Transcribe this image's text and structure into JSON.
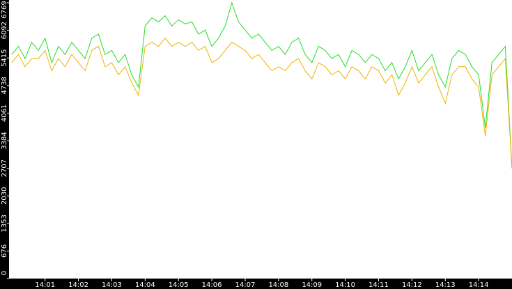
{
  "chart_data": {
    "type": "line",
    "x": [
      0,
      0.2,
      0.4,
      0.6,
      0.8,
      1,
      1.2,
      1.4,
      1.6,
      1.8,
      2,
      2.2,
      2.4,
      2.6,
      2.8,
      3,
      3.2,
      3.4,
      3.6,
      3.8,
      4,
      4.2,
      4.4,
      4.6,
      4.8,
      5,
      5.2,
      5.4,
      5.6,
      5.8,
      6,
      6.2,
      6.4,
      6.6,
      6.8,
      7,
      7.2,
      7.4,
      7.6,
      7.8,
      8,
      8.2,
      8.4,
      8.6,
      8.8,
      9,
      9.2,
      9.4,
      9.6,
      9.8,
      10,
      10.2,
      10.4,
      10.6,
      10.8,
      11,
      11.2,
      11.4,
      11.6,
      11.8,
      12,
      12.2,
      12.4,
      12.6,
      12.8,
      13,
      13.2,
      13.4,
      13.6,
      13.8,
      14,
      14.2,
      14.4,
      14.6,
      14.8,
      15
    ],
    "series": [
      {
        "color": "#22dd22",
        "values": [
          5500,
          5700,
          5400,
          5800,
          5600,
          5900,
          5300,
          5700,
          5500,
          5800,
          5600,
          5400,
          5900,
          6000,
          5500,
          5600,
          5300,
          5500,
          5000,
          4700,
          6200,
          6400,
          6300,
          6450,
          6200,
          6350,
          6250,
          6300,
          6000,
          6100,
          5700,
          5900,
          6200,
          6769,
          6300,
          6100,
          5900,
          6000,
          5800,
          5600,
          5700,
          5500,
          5800,
          5900,
          5500,
          5300,
          5700,
          5600,
          5400,
          5500,
          5200,
          5600,
          5500,
          5300,
          5500,
          5400,
          5100,
          5300,
          4900,
          5200,
          5600,
          5100,
          5300,
          5500,
          5000,
          4700,
          5400,
          5600,
          5500,
          5200,
          5000,
          3700,
          5300,
          5500,
          5700,
          2700
        ]
      },
      {
        "color": "#f0b000",
        "values": [
          5300,
          5500,
          5200,
          5400,
          5400,
          5600,
          5100,
          5400,
          5200,
          5500,
          5300,
          5100,
          5600,
          5700,
          5200,
          5300,
          5000,
          5200,
          4800,
          4500,
          5700,
          5800,
          5700,
          5900,
          5700,
          5800,
          5700,
          5800,
          5600,
          5700,
          5300,
          5400,
          5600,
          5800,
          5700,
          5600,
          5400,
          5500,
          5300,
          5100,
          5200,
          5100,
          5300,
          5400,
          5100,
          4900,
          5300,
          5200,
          5000,
          5100,
          4900,
          5200,
          5100,
          4900,
          5200,
          5100,
          4800,
          5000,
          4500,
          4800,
          5200,
          4800,
          5000,
          5200,
          4700,
          4300,
          5000,
          5200,
          5200,
          4900,
          4700,
          3500,
          5000,
          5200,
          5400,
          2700
        ]
      }
    ],
    "xlim": [
      -0.08,
      15
    ],
    "xticks": [
      {
        "value": 1,
        "label": "14:01"
      },
      {
        "value": 2,
        "label": "14:02"
      },
      {
        "value": 3,
        "label": "14:03"
      },
      {
        "value": 4,
        "label": "14:04"
      },
      {
        "value": 5,
        "label": "14:05"
      },
      {
        "value": 6,
        "label": "14:06"
      },
      {
        "value": 7,
        "label": "14:07"
      },
      {
        "value": 8,
        "label": "14:08"
      },
      {
        "value": 9,
        "label": "14:09"
      },
      {
        "value": 10,
        "label": "14:10"
      },
      {
        "value": 11,
        "label": "14:11"
      },
      {
        "value": 12,
        "label": "14:12"
      },
      {
        "value": 13,
        "label": "14:13"
      },
      {
        "value": 14,
        "label": "14:14"
      }
    ],
    "ylim": [
      0,
      6769
    ],
    "yticks": [
      0,
      676,
      1353,
      2030,
      2707,
      3384,
      4061,
      4738,
      5415,
      6092,
      6769
    ]
  }
}
